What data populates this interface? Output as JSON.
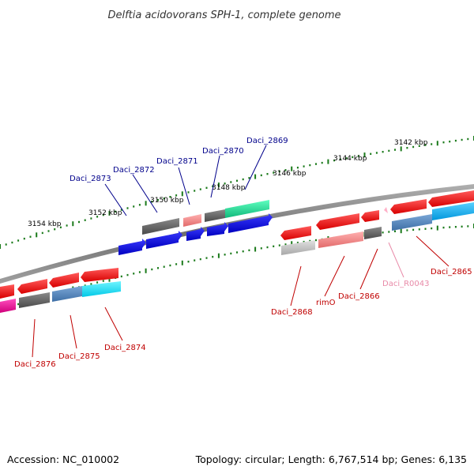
{
  "title": "Delftia acidovorans SPH-1, complete genome",
  "footer": {
    "accession": "Accession: NC_010002",
    "topology": "Topology: circular; Length: 6,767,514 bp; Genes: 6,135"
  },
  "colors": {
    "backbone": "#8c8c8c",
    "tick": "#1a7a1a",
    "forward_label": "#00008b",
    "reverse_label": "#c00000",
    "rna_label": "#e88aa8"
  },
  "scale_labels": [
    "3154 kbp",
    "3152 kbp",
    "3150 kbp",
    "3148 kbp",
    "3146 kbp",
    "3144 kbp",
    "3142 kbp"
  ],
  "genes_forward": [
    {
      "name": "Daci_2873"
    },
    {
      "name": "Daci_2872"
    },
    {
      "name": "Daci_2871"
    },
    {
      "name": "Daci_2870"
    },
    {
      "name": "Daci_2869"
    }
  ],
  "genes_reverse": [
    {
      "name": "Daci_2876"
    },
    {
      "name": "Daci_2875"
    },
    {
      "name": "Daci_2874"
    },
    {
      "name": "Daci_2868"
    },
    {
      "name": "rimO"
    },
    {
      "name": "Daci_2866"
    },
    {
      "name": "Daci_R0043"
    },
    {
      "name": "Daci_2865"
    }
  ]
}
